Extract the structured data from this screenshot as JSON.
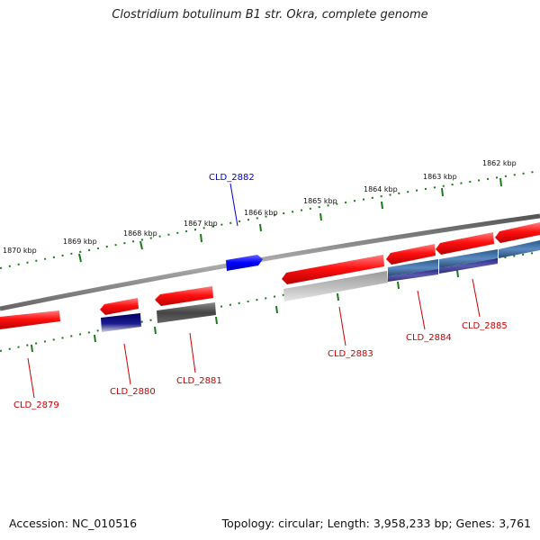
{
  "title": "Clostridium botulinum B1 str. Okra, complete genome",
  "footer": {
    "accession": "Accession: NC_010516",
    "summary": "Topology: circular; Length: 3,958,233 bp; Genes: 3,761"
  },
  "scale_labels": [
    "1870 kbp",
    "1869 kbp",
    "1868 kbp",
    "1867 kbp",
    "1866 kbp",
    "1865 kbp",
    "1864 kbp",
    "1863 kbp",
    "1862 kbp"
  ],
  "genes": [
    {
      "id": "CLD_2879",
      "strand": "reverse"
    },
    {
      "id": "CLD_2880",
      "strand": "reverse"
    },
    {
      "id": "CLD_2881",
      "strand": "reverse"
    },
    {
      "id": "CLD_2882",
      "strand": "forward"
    },
    {
      "id": "CLD_2883",
      "strand": "reverse"
    },
    {
      "id": "CLD_2884",
      "strand": "reverse"
    },
    {
      "id": "CLD_2885",
      "strand": "reverse"
    }
  ],
  "colors": {
    "reverse_gene": "#ff0000",
    "forward_gene": "#0000ff",
    "forward_label": "#0000cc",
    "reverse_label": "#cc0000",
    "backbone": "#888888",
    "scale": "#1a7a1a"
  }
}
